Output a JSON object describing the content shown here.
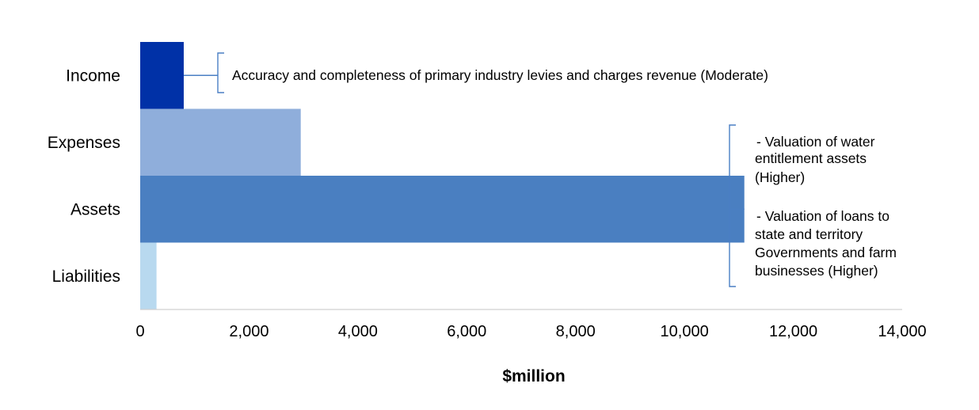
{
  "chart_data": {
    "type": "bar",
    "orientation": "horizontal",
    "categories": [
      "Income",
      "Expenses",
      "Assets",
      "Liabilities"
    ],
    "values": [
      800,
      2950,
      11100,
      300
    ],
    "colors": [
      "#0031a7",
      "#8faedb",
      "#4a7fc1",
      "#b8d9ef"
    ],
    "xlabel": "$million",
    "ylabel": "",
    "xlim": [
      0,
      14000
    ],
    "xticks": [
      0,
      2000,
      4000,
      6000,
      8000,
      10000,
      12000,
      14000
    ],
    "xtick_labels": [
      "0",
      "2,000",
      "4,000",
      "6,000",
      "8,000",
      "10,000",
      "12,000",
      "14,000"
    ],
    "grid": false,
    "legend": "none",
    "annotations": [
      {
        "target": "Income",
        "lines": [
          "Accuracy and completeness of primary industry levies and charges revenue (Moderate)"
        ]
      },
      {
        "target": "Assets",
        "lines": [
          "- Valuation of water",
          "entitlement assets",
          "(Higher)",
          "- Valuation of loans to",
          "state and territory",
          "Governments and farm",
          "businesses (Higher)"
        ]
      }
    ]
  }
}
